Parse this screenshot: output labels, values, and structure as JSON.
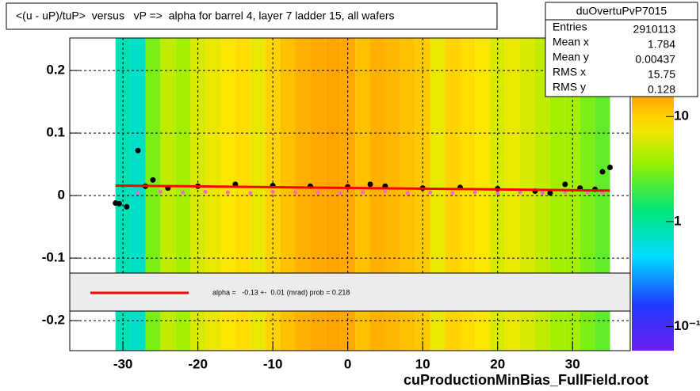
{
  "chart_data": {
    "type": "heatmap",
    "title": "<(u - uP)/tuP>  versus   vP =>  alpha for barrel 4, layer 7 ladder 15, all wafers",
    "footer": "cuProductionMinBias_FullField.root",
    "xlim": [
      -37.1,
      37.7
    ],
    "ylim": [
      -0.248,
      0.252
    ],
    "xticks": [
      -30,
      -20,
      -10,
      0,
      10,
      20,
      30
    ],
    "yticks": [
      -0.2,
      -0.1,
      0,
      0.1,
      0.2
    ],
    "grid": true,
    "bins": [
      -31,
      -29,
      -27,
      -25,
      -23,
      -21,
      -19,
      -17,
      -15,
      -13,
      -11,
      -9,
      -7,
      -5,
      -3,
      -1,
      1,
      3,
      5,
      7,
      9,
      11,
      13,
      15,
      17,
      19,
      21,
      23,
      25,
      27,
      29,
      31,
      33,
      35
    ],
    "counts": [
      0.8,
      0.7,
      3,
      5,
      4,
      6,
      7,
      8,
      9,
      7,
      10,
      12,
      14,
      15,
      16,
      15,
      12,
      14,
      13,
      12,
      11,
      7,
      10,
      9,
      8,
      6,
      7,
      6,
      5,
      4,
      4,
      3,
      2.5
    ],
    "zlim": [
      0.059,
      56
    ],
    "zticks": [
      {
        "value": 0.1,
        "label": "10⁻¹"
      },
      1,
      10
    ],
    "log_z": true,
    "series": [
      {
        "color": "#ff66cc",
        "x": [
          -28,
          -25,
          -22,
          -19,
          -16,
          -13,
          -10,
          -7,
          -4,
          -1,
          2,
          5,
          8,
          11,
          14,
          17,
          20,
          23,
          26,
          29,
          32,
          34
        ],
        "values": [
          0.004,
          0.006,
          0.005,
          0.006,
          0.005,
          0.004,
          0.006,
          0.005,
          0.005,
          0.004,
          0.005,
          0.006,
          0.004,
          0.005,
          0.004,
          0.005,
          0.004,
          0.005,
          0.004,
          0.006,
          0.005,
          0.005
        ]
      },
      {
        "color": "#000000",
        "x": [
          -31,
          -30.5,
          -29.5,
          -28,
          -27,
          -26,
          -24,
          -20,
          -15,
          -10,
          -5,
          0,
          3,
          5,
          10,
          15,
          20,
          25,
          27,
          29,
          31,
          33,
          34,
          35
        ],
        "values": [
          -0.012,
          -0.013,
          -0.018,
          0.072,
          0.015,
          0.025,
          0.012,
          0.015,
          0.018,
          0.016,
          0.015,
          0.014,
          0.018,
          0.015,
          0.012,
          0.013,
          0.011,
          0.007,
          0.004,
          0.018,
          0.012,
          0.01,
          0.038,
          0.045
        ]
      }
    ],
    "fit": {
      "color": "#ff0000",
      "x": [
        -31,
        35
      ],
      "values": [
        0.016,
        0.008
      ]
    },
    "legend_text": "alpha =   -0.13 +-  0.01 (mrad) prob = 0.218",
    "stats": {
      "title": "duOvertuPvP7015",
      "rows": [
        [
          "Entries",
          "2910113"
        ],
        [
          "Mean x",
          "1.784"
        ],
        [
          "Mean y",
          "0.00437"
        ],
        [
          "RMS x",
          "15.75"
        ],
        [
          "RMS y",
          "0.128"
        ]
      ]
    }
  }
}
